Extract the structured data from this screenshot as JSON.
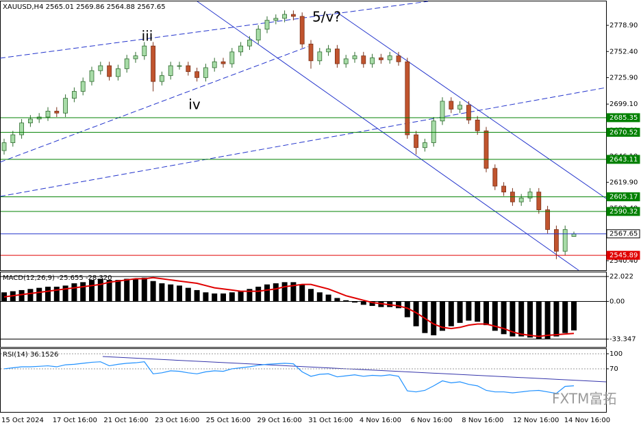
{
  "watermark": "FXTM富拓",
  "chart_data": [
    {
      "type": "candlestick",
      "title": "XAUUSD,H4  2565.01 2569.86 2564.88 2567.65",
      "annotations": [
        "iii",
        "iv",
        "5/v?"
      ],
      "bull_color": "#a8dca8",
      "bear_color": "#c0542e",
      "open": [
        2652,
        2660,
        2668,
        2680,
        2684,
        2686,
        2692,
        2690,
        2705,
        2712,
        2722,
        2733,
        2738,
        2727,
        2735,
        2745,
        2748,
        2758,
        2722,
        2728,
        2738,
        2738,
        2732,
        2726,
        2736,
        2742,
        2740,
        2752,
        2758,
        2764,
        2775,
        2784,
        2786,
        2790,
        2788,
        2760,
        2743,
        2752,
        2755,
        2740,
        2745,
        2748,
        2740,
        2746,
        2744,
        2748,
        2742,
        2668,
        2655,
        2660,
        2682,
        2702,
        2694,
        2698,
        2683,
        2672,
        2634,
        2616,
        2610,
        2600,
        2604,
        2610,
        2592,
        2572,
        2550,
        2565.01
      ],
      "high": [
        2664,
        2672,
        2684,
        2688,
        2690,
        2696,
        2696,
        2709,
        2716,
        2726,
        2737,
        2742,
        2742,
        2739,
        2749,
        2752,
        2762,
        2762,
        2732,
        2742,
        2742,
        2742,
        2736,
        2740,
        2746,
        2746,
        2756,
        2762,
        2768,
        2779,
        2788,
        2790,
        2794,
        2794,
        2792,
        2764,
        2756,
        2759,
        2759,
        2749,
        2752,
        2752,
        2750,
        2750,
        2752,
        2752,
        2746,
        2672,
        2664,
        2686,
        2706,
        2706,
        2702,
        2702,
        2687,
        2676,
        2638,
        2620,
        2614,
        2608,
        2614,
        2614,
        2596,
        2576,
        2576,
        2569.86
      ],
      "low": [
        2648,
        2656,
        2664,
        2676,
        2680,
        2682,
        2686,
        2686,
        2701,
        2708,
        2718,
        2729,
        2723,
        2723,
        2731,
        2741,
        2744,
        2712,
        2718,
        2724,
        2734,
        2728,
        2722,
        2722,
        2732,
        2736,
        2736,
        2748,
        2754,
        2760,
        2771,
        2780,
        2782,
        2784,
        2756,
        2735,
        2739,
        2748,
        2736,
        2736,
        2741,
        2736,
        2736,
        2740,
        2740,
        2738,
        2664,
        2648,
        2651,
        2656,
        2678,
        2690,
        2690,
        2679,
        2668,
        2630,
        2612,
        2606,
        2596,
        2596,
        2600,
        2588,
        2568,
        2542,
        2546,
        2564.88
      ],
      "close": [
        2660,
        2668,
        2680,
        2684,
        2686,
        2692,
        2690,
        2705,
        2712,
        2722,
        2733,
        2738,
        2727,
        2735,
        2745,
        2748,
        2758,
        2722,
        2728,
        2738,
        2738,
        2732,
        2726,
        2736,
        2742,
        2740,
        2752,
        2758,
        2764,
        2775,
        2784,
        2786,
        2790,
        2788,
        2760,
        2743,
        2752,
        2755,
        2740,
        2745,
        2748,
        2740,
        2746,
        2744,
        2748,
        2742,
        2668,
        2655,
        2660,
        2682,
        2702,
        2694,
        2698,
        2683,
        2672,
        2634,
        2616,
        2610,
        2600,
        2604,
        2610,
        2592,
        2572,
        2550,
        2572,
        2567.65
      ],
      "ylim": [
        2530.7,
        2803.2
      ],
      "yticks": [
        {
          "value": 2778.9,
          "label": "2778.90"
        },
        {
          "value": 2752.4,
          "label": "2752.40"
        },
        {
          "value": 2725.9,
          "label": "2725.90"
        },
        {
          "value": 2699.1,
          "label": "2699.10"
        },
        {
          "value": 2672.6,
          "label": "2672.60"
        },
        {
          "value": 2646.1,
          "label": "2646.10"
        },
        {
          "value": 2619.9,
          "label": "2619.90"
        },
        {
          "value": 2593.4,
          "label": "2593.40"
        },
        {
          "value": 2566.9,
          "label": "2566.90"
        },
        {
          "value": 2540.4,
          "label": "2540.40"
        }
      ],
      "levels": [
        2685.35,
        2670.52,
        2643.11,
        2605.17,
        2590.32,
        2567.65,
        2545.89
      ],
      "level_colors": [
        "#008000",
        "#008000",
        "#008000",
        "#008000",
        "#008000",
        "#2233cc",
        "#e00000"
      ]
    },
    {
      "type": "macd",
      "title": "MACD(12,26,9) -25.655 -28.320",
      "series": [
        {
          "style": "bar",
          "color": "#000000",
          "values": [
            8,
            9,
            10,
            11,
            12,
            13,
            13,
            14,
            16,
            17,
            19,
            20,
            19,
            19,
            20,
            20,
            21,
            18,
            16,
            15,
            14,
            12,
            10,
            8,
            7,
            7,
            8,
            9,
            11,
            13,
            15,
            16,
            17,
            17,
            15,
            11,
            8,
            6,
            3,
            1,
            -1,
            -3,
            -4,
            -5,
            -5,
            -6,
            -14,
            -22,
            -28,
            -30,
            -26,
            -22,
            -19,
            -17,
            -18,
            -21,
            -26,
            -29,
            -31,
            -31,
            -32,
            -33,
            -33,
            -31,
            -28,
            -25.655
          ]
        },
        {
          "style": "line",
          "color": "#e00000",
          "values": [
            4,
            5,
            6,
            7,
            8,
            9,
            10,
            11,
            12,
            13,
            14,
            15,
            17,
            18,
            19,
            20,
            20,
            21,
            20,
            19,
            18,
            17,
            16,
            14,
            12,
            11,
            10,
            9,
            9,
            9,
            10,
            11,
            13,
            14,
            15,
            15,
            13,
            11,
            8,
            5,
            3,
            1,
            -1,
            -2,
            -3,
            -4,
            -6,
            -10,
            -15,
            -20,
            -23,
            -24,
            -23,
            -21,
            -20,
            -20,
            -22,
            -24,
            -27,
            -29,
            -30,
            -31,
            -30,
            -29.5,
            -28.9,
            -28.32
          ]
        }
      ],
      "ylim": [
        -40.3,
        25.7
      ],
      "yticks": [
        22.022,
        {
          "value": 0,
          "label": "0.00"
        },
        -33.347
      ]
    },
    {
      "type": "line",
      "title": "RSI(14) 36.1526",
      "series": [
        {
          "color": "#1e90ff",
          "values": [
            70,
            72,
            74,
            74,
            75,
            76,
            74,
            78,
            79,
            81,
            83,
            84,
            76,
            79,
            81,
            82,
            84,
            60,
            62,
            66,
            65,
            62,
            60,
            64,
            66,
            65,
            70,
            72,
            74,
            77,
            79,
            80,
            81,
            80,
            64,
            55,
            59,
            60,
            54,
            56,
            58,
            55,
            57,
            56,
            58,
            55,
            26,
            24,
            27,
            36,
            46,
            42,
            44,
            39,
            36,
            27,
            24,
            24,
            22,
            24,
            26,
            27,
            24,
            21,
            35,
            36.1526
          ]
        }
      ],
      "ylim": [
        -16,
        109.5
      ],
      "yticks": [
        100,
        70
      ],
      "x_labels": [
        "15 Oct 2024",
        "17 Oct 16:00",
        "21 Oct 16:00",
        "23 Oct 16:00",
        "25 Oct 16:00",
        "29 Oct 16:00",
        "31 Oct 16:00",
        "4 Nov 16:00",
        "6 Nov 16:00",
        "8 Nov 16:00",
        "12 Nov 16:00",
        "14 Nov 16:00"
      ]
    }
  ]
}
